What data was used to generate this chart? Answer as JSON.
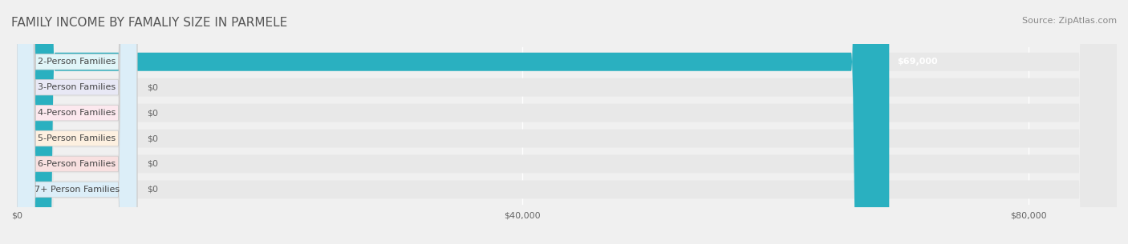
{
  "title": "FAMILY INCOME BY FAMALIY SIZE IN PARMELE",
  "source": "Source: ZipAtlas.com",
  "categories": [
    "2-Person Families",
    "3-Person Families",
    "4-Person Families",
    "5-Person Families",
    "6-Person Families",
    "7+ Person Families"
  ],
  "values": [
    69000,
    0,
    0,
    0,
    0,
    0
  ],
  "bar_colors": [
    "#2ab0c0",
    "#9b9ed4",
    "#f080a0",
    "#f5c888",
    "#e89090",
    "#a8c8e8"
  ],
  "label_bg_colors": [
    "#e0f5f8",
    "#e8e8f5",
    "#fce8ee",
    "#fdf0e0",
    "#f8e0e0",
    "#dceef8"
  ],
  "value_labels": [
    "$69,000",
    "$0",
    "$0",
    "$0",
    "$0",
    "$0"
  ],
  "xlim": [
    0,
    87000
  ],
  "xticks": [
    0,
    40000,
    80000
  ],
  "xticklabels": [
    "$0",
    "$40,000",
    "$80,000"
  ],
  "background_color": "#f0f0f0",
  "bar_bg_color": "#e8e8e8",
  "title_fontsize": 11,
  "source_fontsize": 8,
  "label_fontsize": 8,
  "value_fontsize": 8
}
